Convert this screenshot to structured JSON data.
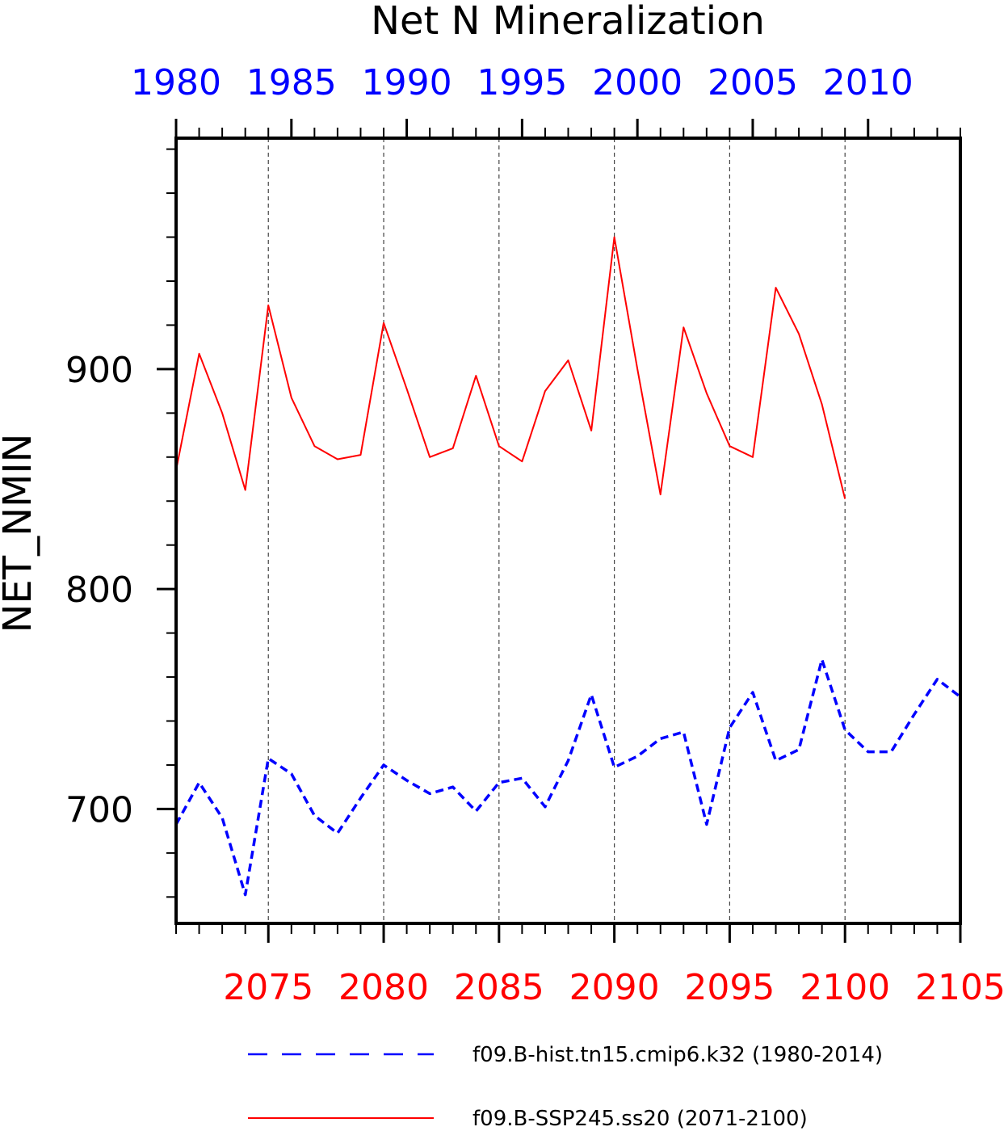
{
  "chart_data": {
    "type": "line",
    "title": "Net N Mineralization",
    "ylabel": "NET_NMIN",
    "ylim": [
      648,
      1005
    ],
    "y_ticks": [
      700,
      800,
      900
    ],
    "grid": "vertical dashed lines at major x ticks",
    "legend_placement": "bottom",
    "top_axis": {
      "label_color": "#0000ff",
      "xlim": [
        1980,
        2014
      ],
      "ticks": [
        "1980",
        "1985",
        "1990",
        "1995",
        "2000",
        "2005",
        "2010"
      ]
    },
    "bottom_axis": {
      "label_color": "#ff0000",
      "xlim": [
        2071,
        2105
      ],
      "ticks": [
        "2075",
        "2080",
        "2085",
        "2090",
        "2095",
        "2100",
        "2105"
      ]
    },
    "series": [
      {
        "name": "f09.B-hist.tn15.cmip6.k32 (1980-2014)",
        "color": "#0000ff",
        "style": "dashed",
        "axis": "top",
        "x": [
          1980,
          1981,
          1982,
          1983,
          1984,
          1985,
          1986,
          1987,
          1988,
          1989,
          1990,
          1991,
          1992,
          1993,
          1994,
          1995,
          1996,
          1997,
          1998,
          1999,
          2000,
          2001,
          2002,
          2003,
          2004,
          2005,
          2006,
          2007,
          2008,
          2009,
          2010,
          2011,
          2012,
          2013,
          2014
        ],
        "values": [
          693,
          712,
          696,
          661,
          723,
          716,
          697,
          689,
          705,
          720,
          713,
          707,
          710,
          699,
          712,
          714,
          701,
          722,
          752,
          719,
          724,
          732,
          735,
          693,
          737,
          753,
          722,
          727,
          768,
          736,
          726,
          726,
          743,
          759,
          751
        ]
      },
      {
        "name": "f09.B-SSP245.ss20 (2071-2100)",
        "color": "#ff0000",
        "style": "solid",
        "axis": "bottom",
        "x": [
          2071,
          2072,
          2073,
          2074,
          2075,
          2076,
          2077,
          2078,
          2079,
          2080,
          2081,
          2082,
          2083,
          2084,
          2085,
          2086,
          2087,
          2088,
          2089,
          2090,
          2091,
          2092,
          2093,
          2094,
          2095,
          2096,
          2097,
          2098,
          2099,
          2100
        ],
        "values": [
          854,
          907,
          880,
          845,
          929,
          887,
          865,
          859,
          861,
          921,
          891,
          860,
          864,
          897,
          865,
          858,
          890,
          904,
          872,
          960,
          900,
          843,
          919,
          889,
          865,
          860,
          937,
          916,
          884,
          841
        ]
      }
    ]
  }
}
